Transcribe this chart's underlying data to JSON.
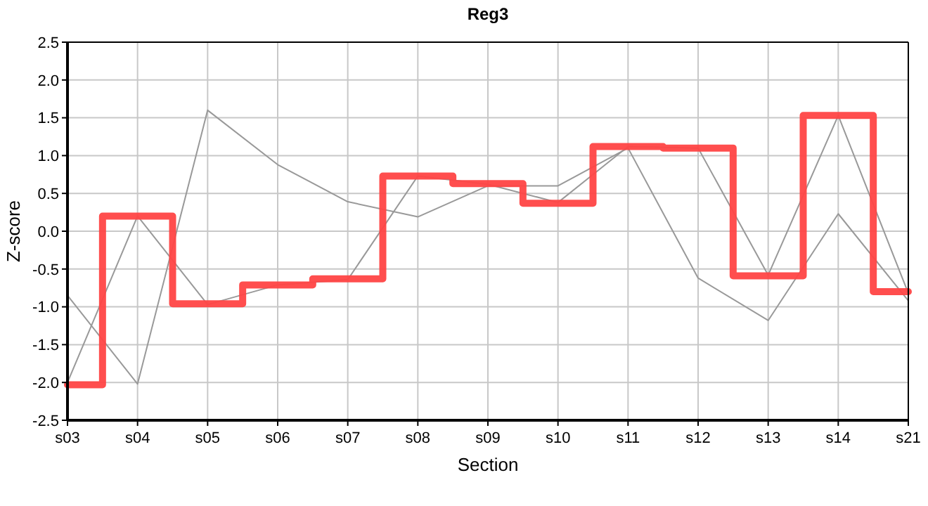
{
  "chart_data": {
    "type": "line",
    "title": "Reg3",
    "xlabel": "Section",
    "ylabel": "Z-score",
    "categories": [
      "s03",
      "s04",
      "s05",
      "s06",
      "s07",
      "s08",
      "s09",
      "s10",
      "s11",
      "s12",
      "s13",
      "s14",
      "s21"
    ],
    "series": [
      {
        "color": "#999999",
        "values": [
          -0.85,
          -2.02,
          1.6,
          0.88,
          0.39,
          0.19,
          0.6,
          0.6,
          1.1,
          -0.62,
          -1.18,
          0.23,
          -0.92
        ]
      },
      {
        "color": "#999999",
        "values": [
          -2.0,
          0.2,
          -0.97,
          -0.71,
          -0.64,
          0.73,
          0.62,
          0.38,
          1.12,
          1.1,
          -0.58,
          1.53,
          -0.82
        ]
      },
      {
        "type": "step",
        "color": "#ff4444",
        "values": [
          -2.03,
          0.2,
          -0.96,
          -0.71,
          -0.63,
          0.73,
          0.63,
          0.37,
          1.12,
          1.1,
          -0.59,
          1.53,
          -0.8
        ]
      }
    ],
    "ylim": [
      -2.5,
      2.5
    ],
    "yticks": [
      {
        "value": -2.5,
        "label": "-2.5"
      },
      {
        "value": -2,
        "label": "-2.0"
      },
      {
        "value": -1.5,
        "label": "-1.5"
      },
      {
        "value": -1,
        "label": "-1.0"
      },
      {
        "value": -0.5,
        "label": "-0.5"
      },
      {
        "value": 0,
        "label": "0.0"
      },
      {
        "value": 0.5,
        "label": "0.5"
      },
      {
        "value": 1,
        "label": "1.0"
      },
      {
        "value": 1.5,
        "label": "1.5"
      },
      {
        "value": 2,
        "label": "2.0"
      },
      {
        "value": 2.5,
        "label": "2.5"
      }
    ],
    "grid": true,
    "marker": "none",
    "line_style": "solid"
  }
}
